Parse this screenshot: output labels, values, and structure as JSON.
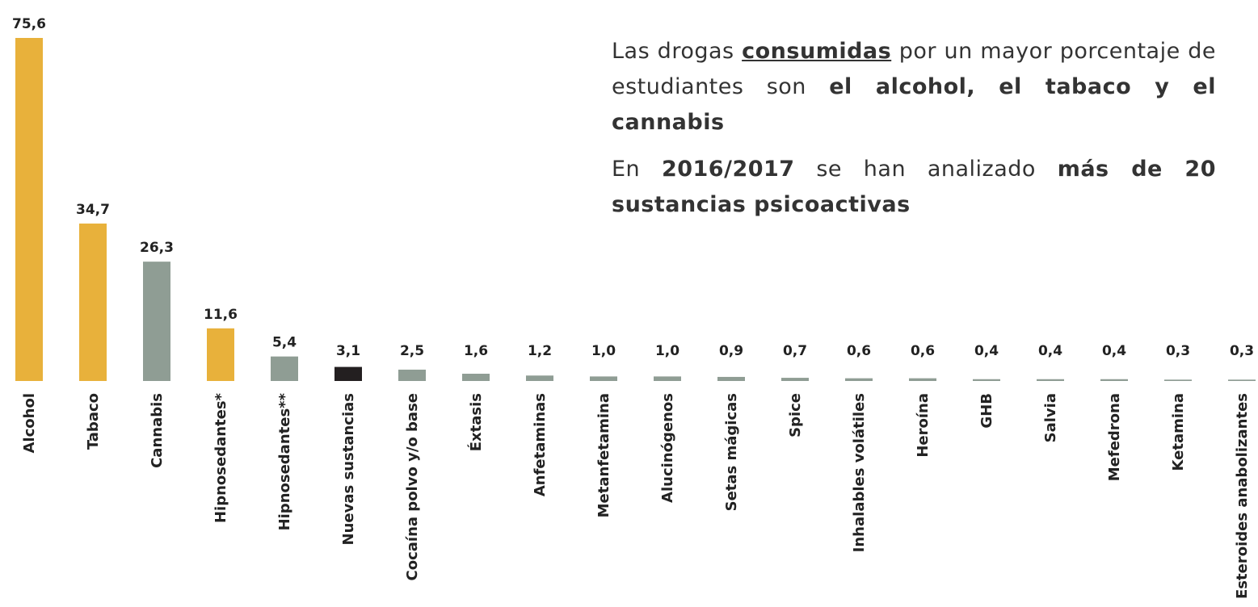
{
  "chart_data": {
    "type": "bar",
    "categories": [
      "Alcohol",
      "Tabaco",
      "Cannabis",
      "Hipnosedantes*",
      "Hipnosedantes**",
      "Nuevas sustancias",
      "Cocaína polvo y/o base",
      "Éxtasis",
      "Anfetaminas",
      "Metanfetamina",
      "Alucinógenos",
      "Setas mágicas",
      "Spice",
      "Inhalables volátiles",
      "Heroína",
      "GHB",
      "Salvia",
      "Mefedrona",
      "Ketamina",
      "Esteroides anabolizantes"
    ],
    "values": [
      75.6,
      34.7,
      26.3,
      11.6,
      5.4,
      3.1,
      2.5,
      1.6,
      1.2,
      1.0,
      1.0,
      0.9,
      0.7,
      0.6,
      0.6,
      0.4,
      0.4,
      0.4,
      0.3,
      0.3
    ],
    "value_labels": [
      "75,6",
      "34,7",
      "26,3",
      "11,6",
      "5,4",
      "3,1",
      "2,5",
      "1,6",
      "1,2",
      "1,0",
      "1,0",
      "0,9",
      "0,7",
      "0,6",
      "0,6",
      "0,4",
      "0,4",
      "0,4",
      "0,3",
      "0,3"
    ],
    "colors": [
      "#e8b13b",
      "#e8b13b",
      "#8f9d94",
      "#e8b13b",
      "#8f9d94",
      "#231f20",
      "#8f9d94",
      "#8f9d94",
      "#8f9d94",
      "#8f9d94",
      "#8f9d94",
      "#8f9d94",
      "#8f9d94",
      "#8f9d94",
      "#8f9d94",
      "#8f9d94",
      "#8f9d94",
      "#8f9d94",
      "#8f9d94",
      "#8f9d94"
    ],
    "annotation": [
      [
        "Las drogas ",
        "consumidas",
        " por un mayor porcentaje de estudiantes son ",
        "el alcohol, el tabaco y el cannabis"
      ],
      [
        "En ",
        "2016/2017",
        " se han analizado ",
        "más de 20 sustancias psicoactivas"
      ]
    ]
  }
}
